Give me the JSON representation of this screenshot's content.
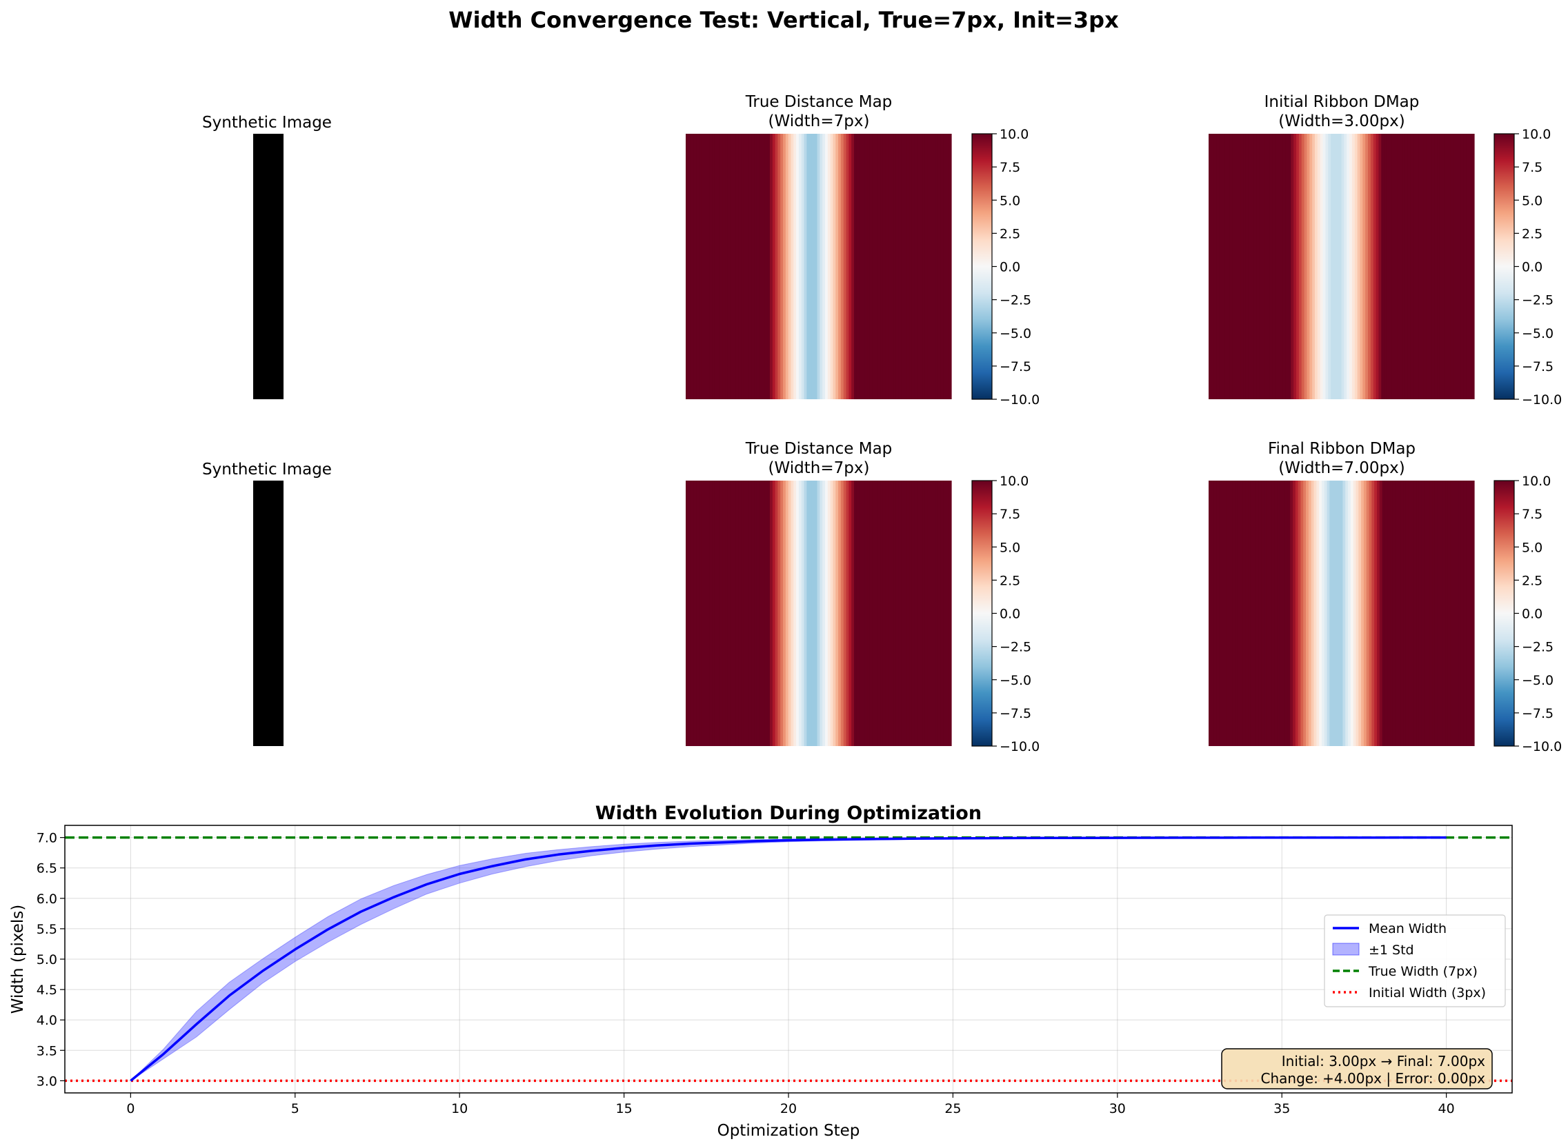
{
  "figure": {
    "suptitle": "Width Convergence Test: Vertical, True=7px, Init=3px"
  },
  "chart_data": [
    {
      "type": "heatmap",
      "panel": "synthetic-image-top",
      "title": "Synthetic Image",
      "colormap": "gray",
      "stripe": {
        "x_start": 0.0,
        "x_end": 0.113,
        "color": "#000000"
      }
    },
    {
      "type": "heatmap",
      "panel": "true-dmap-top",
      "title": "True Distance Map\n(Width=7px)",
      "colormap": "RdBu_r",
      "vmin": -10,
      "vmax": 10,
      "colorbar_ticks": [
        "10.0",
        "7.5",
        "5.0",
        "2.5",
        "0.0",
        "−2.5",
        "−5.0",
        "−7.5",
        "−10.0"
      ],
      "columns": [
        10,
        10,
        10,
        10,
        10,
        10,
        10,
        10,
        10,
        10,
        10,
        10,
        10,
        10,
        10,
        10,
        10,
        10,
        10,
        10,
        10,
        10,
        10,
        10,
        10,
        10,
        10,
        10,
        10,
        10,
        10,
        10,
        9.1,
        8.1,
        7.2,
        6.3,
        5.4,
        4.5,
        3.5,
        2.6,
        1.7,
        0.8,
        -0.1,
        -1.0,
        -1.9,
        -2.8,
        -3.7,
        -3.7,
        -3.7,
        -3.7,
        -2.8,
        -1.9,
        -1.0,
        -0.1,
        0.8,
        1.7,
        2.6,
        3.5,
        4.5,
        5.4,
        6.3,
        7.2,
        8.1,
        9.1,
        10,
        10,
        10,
        10,
        10,
        10,
        10,
        10,
        10,
        10,
        10,
        10,
        10,
        10,
        10,
        10,
        10,
        10,
        10,
        10,
        10,
        10,
        10,
        10,
        10,
        10,
        10,
        10,
        10,
        10,
        10,
        10,
        10,
        10,
        10,
        10,
        10
      ]
    },
    {
      "type": "heatmap",
      "panel": "initial-ribbon-dmap",
      "title": "Initial Ribbon DMap\n(Width=3.00px)",
      "colormap": "RdBu_r",
      "vmin": -10,
      "vmax": 10,
      "colorbar_ticks": [
        "10.0",
        "7.5",
        "5.0",
        "2.5",
        "0.0",
        "−2.5",
        "−5.0",
        "−7.5",
        "−10.0"
      ],
      "columns": [
        10,
        10,
        10,
        10,
        10,
        10,
        10,
        10,
        10,
        10,
        10,
        10,
        10,
        10,
        10,
        10,
        10,
        10,
        10,
        10,
        10,
        10,
        10,
        10,
        10,
        10,
        10,
        10,
        10,
        10,
        10,
        9.2,
        8.4,
        7.6,
        6.8,
        6.0,
        5.2,
        4.4,
        3.6,
        2.8,
        2.0,
        1.2,
        0.4,
        -0.4,
        -1.2,
        -2.0,
        -2.4,
        -2.4,
        -2.4,
        -2.4,
        -2.0,
        -1.2,
        -0.4,
        0.4,
        1.2,
        2.0,
        2.8,
        3.6,
        4.4,
        5.2,
        6.0,
        6.8,
        7.6,
        8.4,
        9.2,
        10,
        10,
        10,
        10,
        10,
        10,
        10,
        10,
        10,
        10,
        10,
        10,
        10,
        10,
        10,
        10,
        10,
        10,
        10,
        10,
        10,
        10,
        10,
        10,
        10,
        10,
        10,
        10,
        10,
        10,
        10,
        10,
        10,
        10,
        10
      ]
    },
    {
      "type": "heatmap",
      "panel": "synthetic-image-bottom",
      "title": "Synthetic Image",
      "colormap": "gray",
      "stripe": {
        "x_start": 0.0,
        "x_end": 0.113,
        "color": "#000000"
      }
    },
    {
      "type": "heatmap",
      "panel": "true-dmap-bottom",
      "title": "True Distance Map\n(Width=7px)",
      "colormap": "RdBu_r",
      "vmin": -10,
      "vmax": 10,
      "colorbar_ticks": [
        "10.0",
        "7.5",
        "5.0",
        "2.5",
        "0.0",
        "−2.5",
        "−5.0",
        "−7.5",
        "−10.0"
      ],
      "columns": [
        10,
        10,
        10,
        10,
        10,
        10,
        10,
        10,
        10,
        10,
        10,
        10,
        10,
        10,
        10,
        10,
        10,
        10,
        10,
        10,
        10,
        10,
        10,
        10,
        10,
        10,
        10,
        10,
        10,
        10,
        10,
        10,
        9.1,
        8.1,
        7.2,
        6.3,
        5.4,
        4.5,
        3.5,
        2.6,
        1.7,
        0.8,
        -0.1,
        -1.0,
        -1.9,
        -2.8,
        -3.7,
        -3.7,
        -3.7,
        -3.7,
        -2.8,
        -1.9,
        -1.0,
        -0.1,
        0.8,
        1.7,
        2.6,
        3.5,
        4.5,
        5.4,
        6.3,
        7.2,
        8.1,
        9.1,
        10,
        10,
        10,
        10,
        10,
        10,
        10,
        10,
        10,
        10,
        10,
        10,
        10,
        10,
        10,
        10,
        10,
        10,
        10,
        10,
        10,
        10,
        10,
        10,
        10,
        10,
        10,
        10,
        10,
        10,
        10,
        10,
        10,
        10,
        10,
        10,
        10
      ]
    },
    {
      "type": "heatmap",
      "panel": "final-ribbon-dmap",
      "title": "Final Ribbon DMap\n(Width=7.00px)",
      "colormap": "RdBu_r",
      "vmin": -10,
      "vmax": 10,
      "colorbar_ticks": [
        "10.0",
        "7.5",
        "5.0",
        "2.5",
        "0.0",
        "−2.5",
        "−5.0",
        "−7.5",
        "−10.0"
      ],
      "columns": [
        10,
        10,
        10,
        10,
        10,
        10,
        10,
        10,
        10,
        10,
        10,
        10,
        10,
        10,
        10,
        10,
        10,
        10,
        10,
        10,
        10,
        10,
        10,
        10,
        10,
        10,
        10,
        10,
        10,
        10,
        10,
        9.4,
        8.6,
        7.7,
        6.9,
        6.0,
        5.2,
        4.3,
        3.5,
        2.6,
        1.8,
        0.9,
        0.1,
        -0.8,
        -1.6,
        -2.5,
        -3.3,
        -3.3,
        -3.3,
        -3.3,
        -3.3,
        -2.5,
        -1.6,
        -0.8,
        0.1,
        0.9,
        1.8,
        2.6,
        3.5,
        4.3,
        5.2,
        6.0,
        6.9,
        7.7,
        8.6,
        9.4,
        10,
        10,
        10,
        10,
        10,
        10,
        10,
        10,
        10,
        10,
        10,
        10,
        10,
        10,
        10,
        10,
        10,
        10,
        10,
        10,
        10,
        10,
        10,
        10,
        10,
        10,
        10,
        10,
        10,
        10,
        10,
        10,
        10,
        10,
        10
      ]
    },
    {
      "type": "line",
      "panel": "width-evolution",
      "title": "Width Evolution During Optimization",
      "xlabel": "Optimization Step",
      "ylabel": "Width (pixels)",
      "xlim": [
        -2,
        42
      ],
      "ylim": [
        2.8,
        7.2
      ],
      "xticks": [
        0,
        5,
        10,
        15,
        20,
        25,
        30,
        35,
        40
      ],
      "yticks": [
        3.0,
        3.5,
        4.0,
        4.5,
        5.0,
        5.5,
        6.0,
        6.5,
        7.0
      ],
      "grid": true,
      "legend_position": "right",
      "x": [
        0,
        1,
        2,
        3,
        4,
        5,
        6,
        7,
        8,
        9,
        10,
        11,
        12,
        13,
        14,
        15,
        16,
        17,
        18,
        19,
        20,
        21,
        22,
        23,
        24,
        25,
        26,
        27,
        28,
        29,
        30,
        31,
        32,
        33,
        34,
        35,
        36,
        37,
        38,
        39,
        40
      ],
      "series": [
        {
          "name": "Mean Width",
          "kind": "line",
          "color": "#0000ff",
          "values": [
            3.0,
            3.44,
            3.93,
            4.4,
            4.8,
            5.16,
            5.49,
            5.78,
            6.02,
            6.23,
            6.4,
            6.53,
            6.64,
            6.72,
            6.78,
            6.83,
            6.87,
            6.9,
            6.92,
            6.94,
            6.955,
            6.965,
            6.972,
            6.978,
            6.983,
            6.986,
            6.989,
            6.991,
            6.993,
            6.994,
            6.995,
            6.996,
            6.997,
            6.997,
            6.998,
            6.998,
            6.999,
            6.999,
            6.999,
            7.0,
            7.0
          ]
        },
        {
          "name": "±1 Std",
          "kind": "band",
          "color": "#0000ff",
          "lower": [
            3.0,
            3.36,
            3.72,
            4.17,
            4.6,
            4.96,
            5.28,
            5.57,
            5.83,
            6.07,
            6.25,
            6.4,
            6.52,
            6.62,
            6.7,
            6.76,
            6.81,
            6.85,
            6.88,
            6.91,
            6.93,
            6.945,
            6.955,
            6.963,
            6.97,
            6.976,
            6.98,
            6.984,
            6.987,
            6.989,
            6.991,
            6.993,
            6.994,
            6.995,
            6.996,
            6.997,
            6.997,
            6.998,
            6.998,
            6.999,
            6.999
          ],
          "upper": [
            3.0,
            3.52,
            4.14,
            4.62,
            5.0,
            5.36,
            5.7,
            5.99,
            6.21,
            6.39,
            6.54,
            6.65,
            6.74,
            6.8,
            6.85,
            6.89,
            6.92,
            6.94,
            6.955,
            6.965,
            6.975,
            6.982,
            6.987,
            6.99,
            6.993,
            6.995,
            6.996,
            6.997,
            6.998,
            6.998,
            6.999,
            6.999,
            6.999,
            6.999,
            7.0,
            7.0,
            7.0,
            7.0,
            7.0,
            7.0,
            7.0
          ]
        },
        {
          "name": "True Width (7px)",
          "kind": "hline",
          "color": "#008000",
          "value": 7.0,
          "linestyle": "dashed"
        },
        {
          "name": "Initial Width (3px)",
          "kind": "hline",
          "color": "#ff0000",
          "value": 3.0,
          "linestyle": "dotted"
        }
      ],
      "annotation": {
        "line1": "Initial: 3.00px → Final: 7.00px",
        "line2": "Change: +4.00px | Error: 0.00px"
      }
    }
  ]
}
